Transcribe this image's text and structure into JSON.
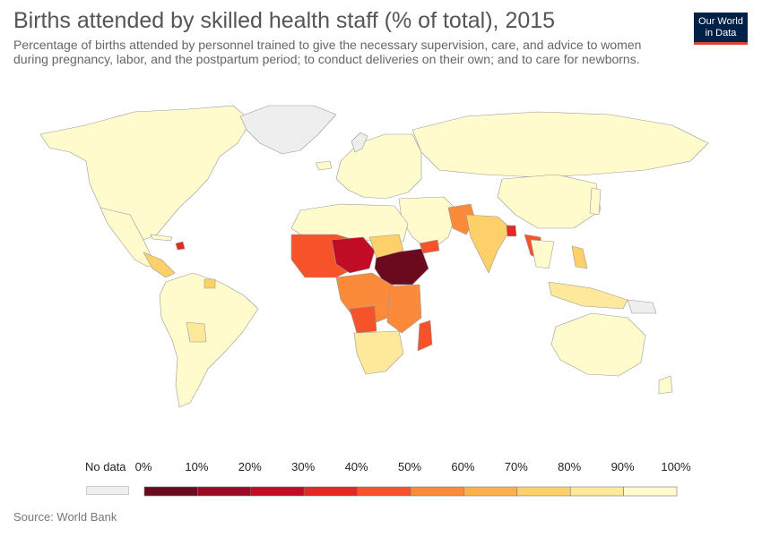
{
  "header": {
    "title": "Births attended by skilled health staff (% of total), 2015",
    "subtitle": "Percentage of births attended by personnel trained to give the necessary supervision, care, and advice to women during pregnancy, labor, and the postpartum period; to conduct deliveries on their own; and to care for newborns.",
    "logo_line1": "Our World",
    "logo_line2": "in Data"
  },
  "legend": {
    "no_data_label": "No data",
    "no_data_color": "#eeeeee",
    "tick_labels": [
      "0%",
      "10%",
      "20%",
      "30%",
      "40%",
      "50%",
      "60%",
      "70%",
      "80%",
      "90%",
      "100%"
    ],
    "bins": [
      {
        "from": 0,
        "to": 10,
        "color": "#6b0a1f"
      },
      {
        "from": 10,
        "to": 20,
        "color": "#9e0a26"
      },
      {
        "from": 20,
        "to": 30,
        "color": "#c00c25"
      },
      {
        "from": 30,
        "to": 40,
        "color": "#e32a22"
      },
      {
        "from": 40,
        "to": 50,
        "color": "#f6532b"
      },
      {
        "from": 50,
        "to": 60,
        "color": "#fc8a3b"
      },
      {
        "from": 60,
        "to": 70,
        "color": "#feaf4a"
      },
      {
        "from": 70,
        "to": 80,
        "color": "#fed06a"
      },
      {
        "from": 80,
        "to": 90,
        "color": "#fee89a"
      },
      {
        "from": 90,
        "to": 100,
        "color": "#fffbcc"
      }
    ]
  },
  "footer": {
    "source": "Source: World Bank"
  }
}
